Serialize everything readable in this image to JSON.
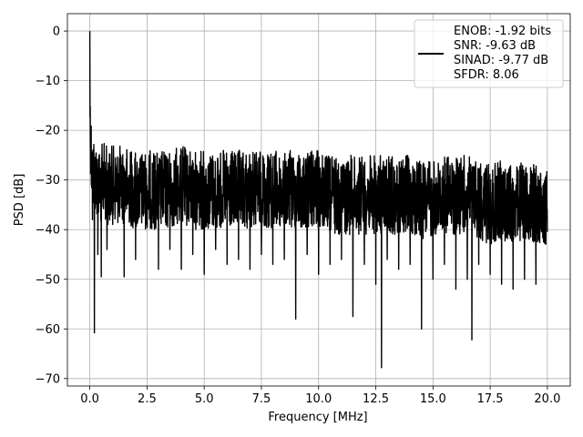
{
  "chart_data": {
    "type": "line",
    "xlabel": "Frequency [MHz]",
    "ylabel": "PSD [dB]",
    "xlim": [
      -0.98,
      21.0
    ],
    "ylim": [
      -71.5,
      3.5
    ],
    "xticks": [
      0.0,
      2.5,
      5.0,
      7.5,
      10.0,
      12.5,
      15.0,
      17.5,
      20.0
    ],
    "xtick_labels": [
      "0.0",
      "2.5",
      "5.0",
      "7.5",
      "10.0",
      "12.5",
      "15.0",
      "17.5",
      "20.0"
    ],
    "yticks": [
      0,
      -10,
      -20,
      -30,
      -40,
      -50,
      -60,
      -70
    ],
    "ytick_labels": [
      "0",
      "−10",
      "−20",
      "−30",
      "−40",
      "−50",
      "−60",
      "−70"
    ],
    "grid": true,
    "legend_position": "top-right",
    "series": [
      {
        "name": "ENOB: -1.92 bits\nSNR: -9.63 dB\nSINAD: -9.77 dB\nSFDR: 8.06",
        "color": "#000000",
        "x": [
          0.0,
          0.02,
          0.05,
          0.08,
          0.12,
          0.16,
          0.2,
          0.25,
          0.3,
          0.35,
          0.4,
          0.5,
          0.6,
          0.75,
          1.0,
          1.5,
          2.0,
          2.5,
          3.0,
          3.5,
          4.0,
          4.5,
          5.0,
          5.5,
          6.0,
          6.5,
          7.0,
          7.5,
          8.0,
          8.5,
          9.0,
          9.5,
          10.0,
          10.5,
          11.0,
          11.5,
          12.0,
          12.5,
          12.75,
          13.0,
          13.5,
          14.0,
          14.5,
          15.0,
          15.5,
          16.0,
          16.5,
          16.7,
          17.0,
          17.5,
          18.0,
          18.5,
          19.0,
          19.5,
          20.0
        ],
        "envelope_upper": [
          0.0,
          -8,
          -12,
          -15,
          -16,
          -18,
          -17,
          -19,
          -18,
          -19,
          -20,
          -20,
          -19,
          -20,
          -20,
          -20,
          -21,
          -21,
          -21,
          -21,
          -20,
          -21,
          -21,
          -21,
          -21,
          -21,
          -21,
          -21,
          -21,
          -21,
          -21,
          -21,
          -21,
          -22,
          -22,
          -22,
          -22,
          -22,
          -22,
          -22,
          -22,
          -22,
          -23,
          -23,
          -22,
          -22,
          -22,
          -22,
          -23,
          -24,
          -23,
          -24,
          -23,
          -24,
          -24
        ],
        "envelope_lower": [
          -20,
          -28,
          -33,
          -36,
          -38,
          -37,
          -60.8,
          -38,
          -40,
          -45,
          -42,
          -49.5,
          -41,
          -44,
          -42,
          -49.5,
          -46,
          -43,
          -48,
          -44,
          -48,
          -45,
          -49,
          -44,
          -47,
          -46,
          -48,
          -45,
          -47,
          -46,
          -58,
          -45,
          -49,
          -47,
          -46,
          -57.5,
          -47,
          -51,
          -67.8,
          -46,
          -48,
          -47,
          -60,
          -50,
          -47,
          -52,
          -50,
          -62.2,
          -47,
          -49,
          -51,
          -52,
          -50,
          -51,
          -43
        ]
      }
    ]
  }
}
